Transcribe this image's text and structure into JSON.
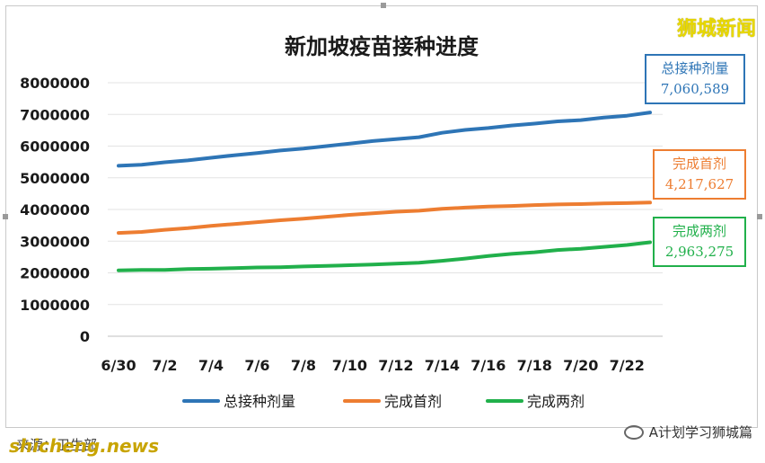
{
  "brand_text": "狮城新闻",
  "footer": {
    "source_text": "shicheng.news",
    "cn_text": "来源：卫生部",
    "wechat_label": "A计划学习狮城篇"
  },
  "callouts": [
    {
      "label": "总接种剂量",
      "value": "7,060,589",
      "color": "#2e75b6"
    },
    {
      "label": "完成首剂",
      "value": "4,217,627",
      "color": "#ed7d31"
    },
    {
      "label": "完成两剂",
      "value": "2,963,275",
      "color": "#21b04b"
    }
  ],
  "chart_data": {
    "type": "line",
    "title": "新加坡疫苗接种进度",
    "xlabel": "",
    "ylabel": "",
    "ylim": [
      0,
      8000000
    ],
    "yticks": [
      0,
      1000000,
      2000000,
      3000000,
      4000000,
      5000000,
      6000000,
      7000000,
      8000000
    ],
    "x": [
      "6/30",
      "7/1",
      "7/2",
      "7/3",
      "7/4",
      "7/5",
      "7/6",
      "7/7",
      "7/8",
      "7/9",
      "7/10",
      "7/11",
      "7/12",
      "7/13",
      "7/14",
      "7/15",
      "7/16",
      "7/17",
      "7/18",
      "7/19",
      "7/20",
      "7/21",
      "7/22",
      "7/23"
    ],
    "xtick_labels": [
      "6/30",
      "7/2",
      "7/4",
      "7/6",
      "7/8",
      "7/10",
      "7/12",
      "7/14",
      "7/16",
      "7/18",
      "7/20",
      "7/22"
    ],
    "legend_position": "bottom",
    "grid": "horizontal",
    "series": [
      {
        "name": "总接种剂量",
        "color": "#2e75b6",
        "values": [
          5380000,
          5410000,
          5490000,
          5550000,
          5630000,
          5710000,
          5780000,
          5860000,
          5920000,
          6000000,
          6080000,
          6160000,
          6220000,
          6280000,
          6420000,
          6510000,
          6570000,
          6650000,
          6710000,
          6780000,
          6820000,
          6900000,
          6960000,
          7060589
        ]
      },
      {
        "name": "完成首剂",
        "color": "#ed7d31",
        "values": [
          3260000,
          3290000,
          3360000,
          3410000,
          3480000,
          3540000,
          3600000,
          3660000,
          3710000,
          3770000,
          3830000,
          3880000,
          3930000,
          3960000,
          4020000,
          4060000,
          4090000,
          4110000,
          4140000,
          4160000,
          4170000,
          4190000,
          4200000,
          4217627
        ]
      },
      {
        "name": "完成两剂",
        "color": "#21b04b",
        "values": [
          2080000,
          2090000,
          2090000,
          2120000,
          2130000,
          2150000,
          2170000,
          2180000,
          2200000,
          2220000,
          2240000,
          2260000,
          2290000,
          2320000,
          2380000,
          2450000,
          2530000,
          2600000,
          2650000,
          2720000,
          2760000,
          2820000,
          2880000,
          2963275
        ]
      }
    ]
  }
}
